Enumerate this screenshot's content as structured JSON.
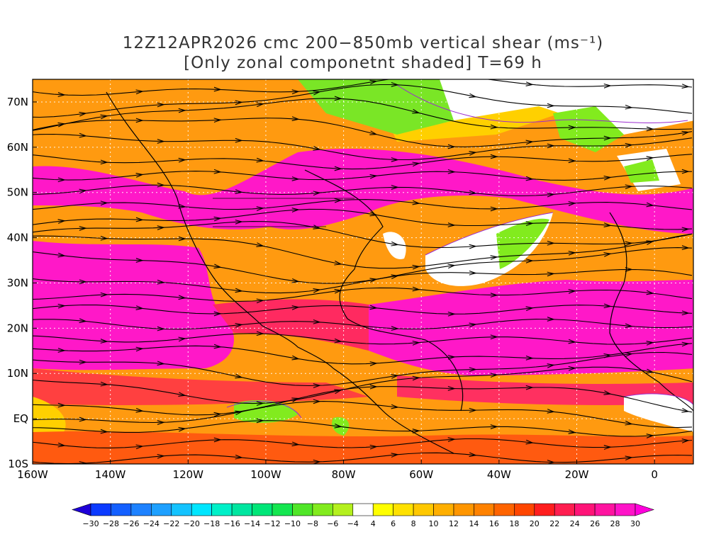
{
  "title": {
    "line1": "12Z12APR2026 cmc 200−850mb vertical shear (ms⁻¹)",
    "line2": "[Only zonal componetnt shaded] T=69 h"
  },
  "map": {
    "region": "Atlantic / Americas",
    "lat_labels": [
      "70N",
      "60N",
      "50N",
      "40N",
      "30N",
      "20N",
      "10N",
      "EQ",
      "10S"
    ],
    "lon_labels": [
      "160W",
      "140W",
      "120W",
      "100W",
      "80W",
      "60W",
      "40W",
      "20W",
      "0"
    ],
    "lat_range": [
      -10,
      75
    ],
    "lon_range": [
      -160,
      10
    ],
    "field": "zonal component of 200-850mb vertical shear",
    "overlay": "streamlines of shear vector"
  },
  "colorbar": {
    "labels": [
      "-30",
      "-28",
      "-26",
      "-24",
      "-22",
      "-20",
      "-18",
      "-16",
      "-14",
      "-12",
      "-10",
      "-8",
      "-6",
      "-4",
      "4",
      "6",
      "8",
      "10",
      "12",
      "14",
      "16",
      "18",
      "20",
      "22",
      "24",
      "26",
      "28",
      "30"
    ],
    "colors": [
      "#1e00d8",
      "#0c3bff",
      "#1460ff",
      "#1e82ff",
      "#1ea0ff",
      "#14c3ff",
      "#00e6ff",
      "#00f0c8",
      "#00e6a0",
      "#00e678",
      "#14e650",
      "#50e628",
      "#82eb1e",
      "#b4f01e",
      "#ffffff",
      "#ffff00",
      "#ffe100",
      "#ffc800",
      "#ffaf00",
      "#ff9600",
      "#ff8200",
      "#ff6400",
      "#ff4600",
      "#ff1e1e",
      "#ff1e50",
      "#ff1478",
      "#ff14a0",
      "#ff14c8",
      "#ff00dc"
    ]
  }
}
